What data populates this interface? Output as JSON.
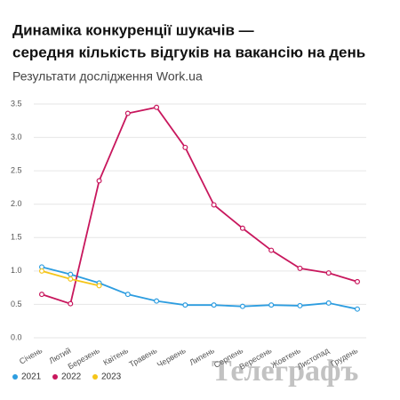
{
  "chart_data": {
    "type": "line",
    "title_lines": [
      "Динаміка конкуренції шукачів —",
      "середня кількість відгуків на вакансію на день"
    ],
    "subtitle": "Результати дослідження Work.ua",
    "watermark": "Телеграфъ",
    "categories": [
      "Січень",
      "Лютий",
      "Березень",
      "Квітень",
      "Травень",
      "Червень",
      "Липень",
      "Серпень",
      "Вересень",
      "Жовтень",
      "Листопад",
      "Грудень"
    ],
    "series": [
      {
        "name": "2021",
        "color": "#2d9de0",
        "values": [
          1.06,
          0.95,
          0.82,
          0.65,
          0.55,
          0.49,
          0.49,
          0.47,
          0.49,
          0.48,
          0.52,
          0.43
        ]
      },
      {
        "name": "2022",
        "color": "#c8175d",
        "values": [
          0.65,
          0.51,
          2.35,
          3.36,
          3.45,
          2.85,
          1.99,
          1.64,
          1.31,
          1.04,
          0.97,
          0.84
        ]
      },
      {
        "name": "2023",
        "color": "#f5c518",
        "values": [
          1.0,
          0.88,
          0.78,
          null,
          null,
          null,
          null,
          null,
          null,
          null,
          null,
          null
        ]
      }
    ],
    "ylim": [
      0,
      3.5
    ],
    "yticks": [
      {
        "value": 0,
        "label": "0.0"
      },
      0.5,
      {
        "value": 1,
        "label": "1.0"
      },
      1.5,
      {
        "value": 2,
        "label": "2.0"
      },
      2.5,
      {
        "value": 3,
        "label": "3.0"
      },
      3.5
    ],
    "grid": true
  }
}
